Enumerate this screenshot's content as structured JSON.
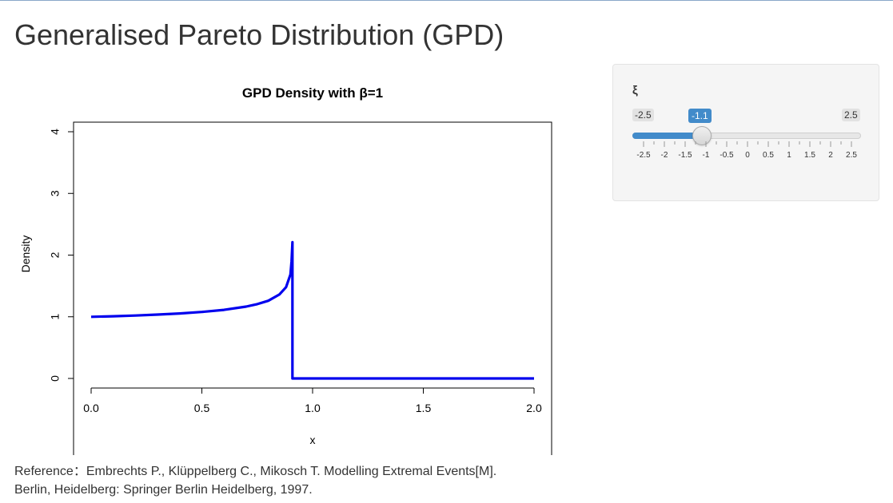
{
  "page": {
    "title": "Generalised Pareto Distribution (GPD)"
  },
  "control": {
    "label": "ξ",
    "slider": {
      "min_label": "-2.5",
      "max_label": "2.5",
      "value_label": "-1.1",
      "min": -2.5,
      "max": 2.5,
      "value": -1.1,
      "tick_labels": [
        "-2.5",
        "-2",
        "-1.5",
        "-1",
        "-0.5",
        "0",
        "0.5",
        "1",
        "1.5",
        "2",
        "2.5"
      ],
      "tick_values": [
        -2.5,
        -2,
        -1.5,
        -1,
        -0.5,
        0,
        0.5,
        1,
        1.5,
        2,
        2.5
      ],
      "accent_color": "#428bca"
    }
  },
  "chart_data": {
    "type": "line",
    "title": "GPD Density with β=1",
    "xlabel": "x",
    "ylabel": "Density",
    "xlim": [
      0,
      2
    ],
    "ylim": [
      0,
      4
    ],
    "x_ticks": [
      "0.0",
      "0.5",
      "1.0",
      "1.5",
      "2.0"
    ],
    "x_tick_values": [
      0,
      0.5,
      1,
      1.5,
      2
    ],
    "y_ticks": [
      "0",
      "1",
      "2",
      "3",
      "4"
    ],
    "y_tick_values": [
      0,
      1,
      2,
      3,
      4
    ],
    "grid": false,
    "series": [
      {
        "color": "#0000ee",
        "x": [
          0,
          0.1,
          0.2,
          0.3,
          0.4,
          0.5,
          0.6,
          0.7,
          0.75,
          0.8,
          0.85,
          0.88,
          0.9,
          0.905,
          0.909,
          0.909,
          1.0,
          1.5,
          2.0
        ],
        "y": [
          1.0,
          1.009,
          1.02,
          1.035,
          1.054,
          1.078,
          1.112,
          1.165,
          1.205,
          1.259,
          1.361,
          1.48,
          1.686,
          1.9,
          2.21,
          0,
          0,
          0,
          0
        ]
      }
    ]
  },
  "footer": {
    "reference_line1": "Reference：Embrechts P., Klüppelberg C., Mikosch T. Modelling Extremal Events[M].",
    "reference_line2": "Berlin, Heidelberg: Springer Berlin Heidelberg, 1997."
  }
}
